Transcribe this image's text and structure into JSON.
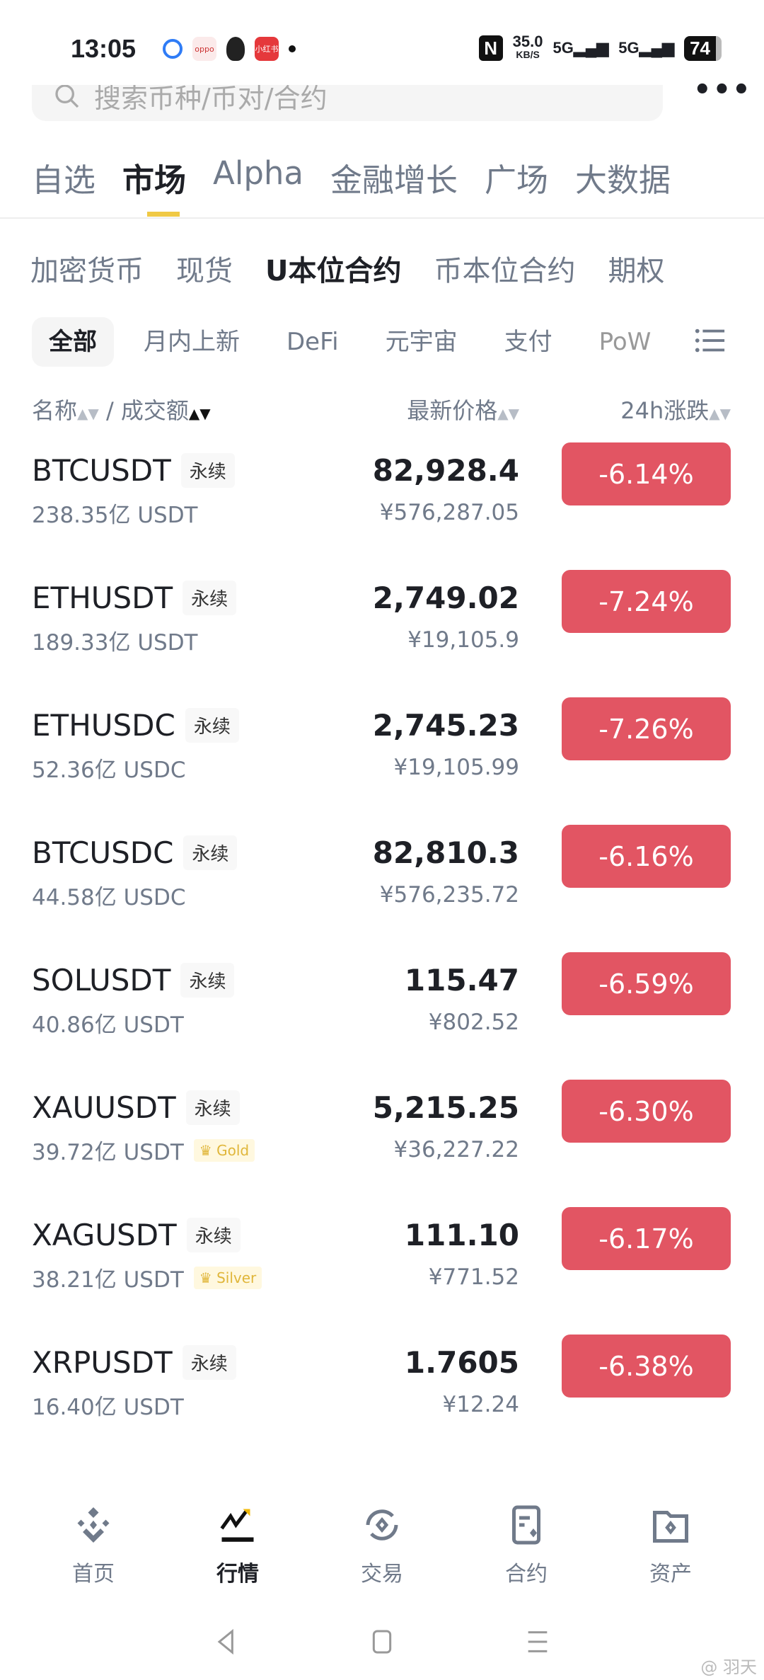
{
  "status_bar": {
    "time": "13:05",
    "speed": "35.0",
    "speed_unit": "KB/S",
    "net1": "5G",
    "net2": "5G",
    "battery": "74",
    "nfc": "N",
    "app_icons": [
      "browser-icon",
      "oppo-icon",
      "qq-icon",
      "xiaohongshu-icon"
    ],
    "xhs_label": "小红书",
    "oppo_label": "oppo"
  },
  "search": {
    "placeholder": "搜索币种/币对/合约"
  },
  "main_tabs": [
    {
      "label": "自选"
    },
    {
      "label": "市场"
    },
    {
      "label": "Alpha"
    },
    {
      "label": "金融增长"
    },
    {
      "label": "广场"
    },
    {
      "label": "大数据"
    }
  ],
  "main_tab_active": "市场",
  "sub_tabs": [
    {
      "label": "加密货币"
    },
    {
      "label": "现货"
    },
    {
      "label": "U本位合约"
    },
    {
      "label": "币本位合约"
    },
    {
      "label": "期权"
    }
  ],
  "sub_tab_active": "U本位合约",
  "chips": [
    {
      "label": "全部"
    },
    {
      "label": "月内上新"
    },
    {
      "label": "DeFi"
    },
    {
      "label": "元宇宙"
    },
    {
      "label": "支付"
    },
    {
      "label": "PoW"
    }
  ],
  "columns": {
    "name": "名称",
    "sep": "/",
    "volume": "成交额",
    "price": "最新价格",
    "change": "24h涨跌"
  },
  "rows": [
    {
      "symbol": "BTCUSDT",
      "tag": "永续",
      "volume": "238.35亿 USDT",
      "price": "82,928.4",
      "cny": "¥576,287.05",
      "change": "-6.14%"
    },
    {
      "symbol": "ETHUSDT",
      "tag": "永续",
      "volume": "189.33亿 USDT",
      "price": "2,749.02",
      "cny": "¥19,105.9",
      "change": "-7.24%"
    },
    {
      "symbol": "ETHUSDC",
      "tag": "永续",
      "volume": "52.36亿 USDC",
      "price": "2,745.23",
      "cny": "¥19,105.99",
      "change": "-7.26%"
    },
    {
      "symbol": "BTCUSDC",
      "tag": "永续",
      "volume": "44.58亿 USDC",
      "price": "82,810.3",
      "cny": "¥576,235.72",
      "change": "-6.16%"
    },
    {
      "symbol": "SOLUSDT",
      "tag": "永续",
      "volume": "40.86亿 USDT",
      "price": "115.47",
      "cny": "¥802.52",
      "change": "-6.59%"
    },
    {
      "symbol": "XAUUSDT",
      "tag": "永续",
      "volume": "39.72亿 USDT",
      "extra": "Gold",
      "price": "5,215.25",
      "cny": "¥36,227.22",
      "change": "-6.30%"
    },
    {
      "symbol": "XAGUSDT",
      "tag": "永续",
      "volume": "38.21亿 USDT",
      "extra": "Silver",
      "price": "111.10",
      "cny": "¥771.52",
      "change": "-6.17%"
    },
    {
      "symbol": "XRPUSDT",
      "tag": "永续",
      "volume": "16.40亿 USDT",
      "price": "1.7605",
      "cny": "¥12.24",
      "change": "-6.38%"
    }
  ],
  "bottom_nav": [
    {
      "label": "首页",
      "icon": "binance-logo-icon"
    },
    {
      "label": "行情",
      "icon": "chart-icon"
    },
    {
      "label": "交易",
      "icon": "exchange-icon"
    },
    {
      "label": "合约",
      "icon": "futures-icon"
    },
    {
      "label": "资产",
      "icon": "wallet-icon"
    }
  ],
  "bottom_nav_active": "行情",
  "watermark": "@ 羽天",
  "colors": {
    "down": "#e25563",
    "accent": "#f0c945",
    "text": "#1e2026",
    "muted": "#707a8a"
  }
}
